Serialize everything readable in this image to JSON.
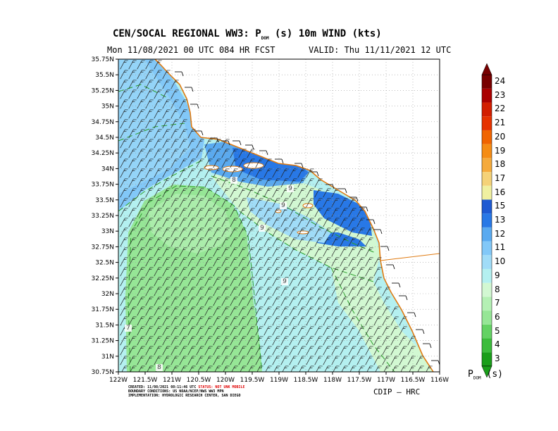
{
  "header": {
    "title_prefix": "CEN/SOCAL REGIONAL WW3: P",
    "title_sub": "DOM",
    "title_suffix": " (s) 10m WIND (kts)",
    "run_info": "Mon 11/08/2021 00 UTC 084 HR FCST",
    "valid_info": "VALID: Thu 11/11/2021 12 UTC"
  },
  "map": {
    "lat_labels": [
      "35.75N",
      "35.5N",
      "35.25N",
      "35N",
      "34.75N",
      "34.5N",
      "34.25N",
      "34N",
      "33.75N",
      "33.5N",
      "33.25N",
      "33N",
      "32.75N",
      "32.5N",
      "32.25N",
      "32N",
      "31.75N",
      "31.5N",
      "31.25N",
      "31N",
      "30.75N"
    ],
    "lon_labels": [
      "122W",
      "121.5W",
      "121W",
      "120.5W",
      "120W",
      "119.5W",
      "119W",
      "118.5W",
      "118W",
      "117.5W",
      "117W",
      "116.5W",
      "116W"
    ],
    "contour_labels": [
      "9",
      "9",
      "9",
      "9",
      "8",
      "7",
      "8"
    ],
    "grid": "dotted",
    "land_color": "#ffffff",
    "coast_color": "#e07a10"
  },
  "colorbar": {
    "levels": [
      "3",
      "4",
      "5",
      "6",
      "7",
      "8",
      "9",
      "10",
      "11",
      "12",
      "13",
      "15",
      "16",
      "17",
      "18",
      "19",
      "20",
      "21",
      "22",
      "23",
      "24"
    ],
    "colors": [
      "#1a9e1a",
      "#3cbc3c",
      "#64d264",
      "#96e696",
      "#b4f0b4",
      "#d2f8d2",
      "#b4f0f0",
      "#a0dcf8",
      "#82c8f8",
      "#5aaaf0",
      "#2878e6",
      "#1e5ad2",
      "#f0f0a0",
      "#f5d278",
      "#f5aa3c",
      "#f58c14",
      "#f06400",
      "#e63200",
      "#d21e00",
      "#aa0000",
      "#780000"
    ],
    "title_prefix": "P",
    "title_sub": "DOM",
    "title_suffix": "  (s)"
  },
  "footer": {
    "created": "CREATED: 11/08/2021 08:11:46 UTC",
    "status": "STATUS: NOT UNK MOBILE",
    "boundary": "BOUNDARY CONDITIONS: US NOAA/NCEP/NWS WW3 MPN",
    "implementation": "IMPLEMENTATION: HYDROLOGIC RESEARCH CENTER, SAN DIEGO",
    "source": "CDIP — HRC"
  }
}
